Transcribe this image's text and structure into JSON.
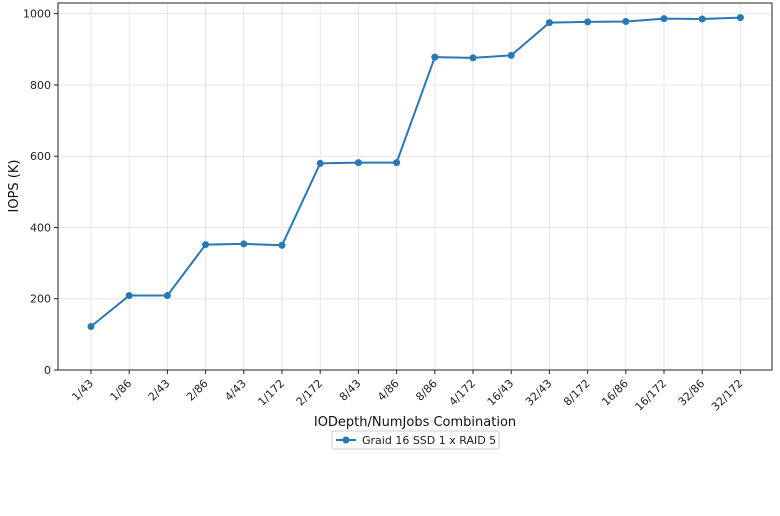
{
  "chart_data": {
    "type": "line",
    "title": "",
    "xlabel": "IODepth/NumJobs Combination",
    "ylabel": "IOPS (K)",
    "categories": [
      "1/43",
      "1/86",
      "2/43",
      "2/86",
      "4/43",
      "1/172",
      "2/172",
      "8/43",
      "4/86",
      "8/86",
      "4/172",
      "16/43",
      "32/43",
      "8/172",
      "16/86",
      "16/172",
      "32/86",
      "32/172"
    ],
    "series": [
      {
        "name": "Graid 16 SSD 1 x RAID 5",
        "color": "#2878b5",
        "values": [
          122,
          209,
          209,
          352,
          354,
          350,
          580,
          582,
          582,
          878,
          876,
          883,
          975,
          977,
          978,
          986,
          985,
          989
        ]
      }
    ],
    "ylim": [
      0,
      1030
    ],
    "yticks": [
      0,
      200,
      400,
      600,
      800,
      1000
    ],
    "grid": true,
    "legend_position": "bottom-center"
  }
}
